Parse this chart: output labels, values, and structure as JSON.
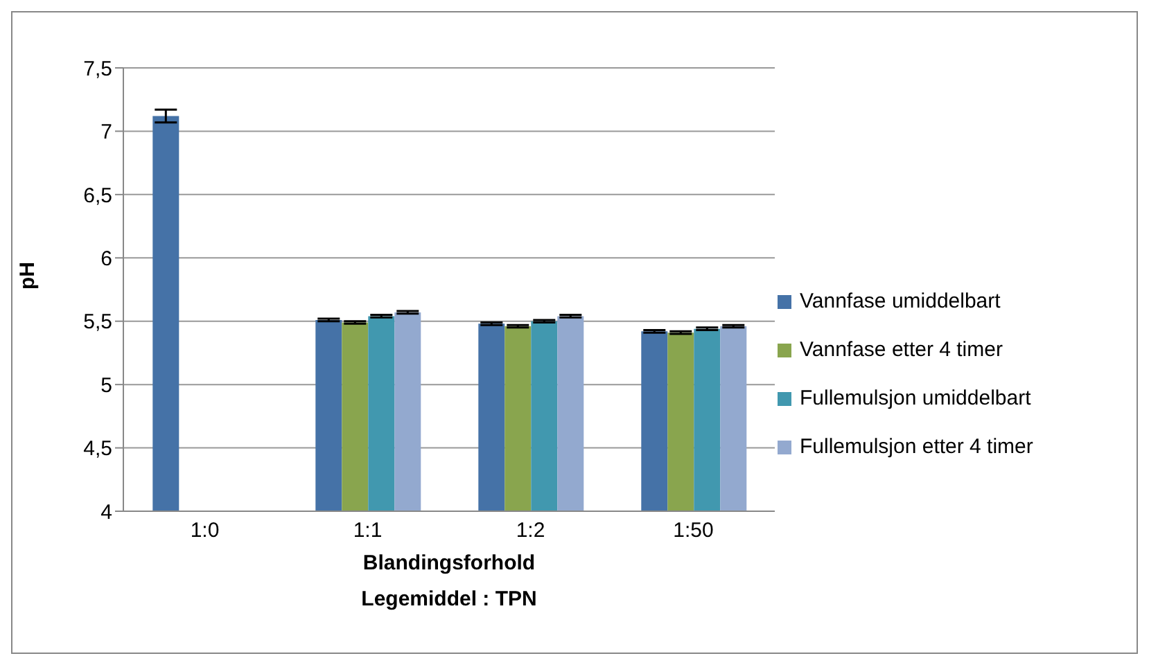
{
  "chart_data": {
    "type": "bar",
    "ylabel": "pH",
    "xlabel": "Blandingsforhold\nLegemiddel : TPN",
    "categories": [
      "1:0",
      "1:1",
      "1:2",
      "1:50"
    ],
    "series": [
      {
        "name": "Vannfase umiddelbart",
        "color": "#4572a7",
        "values": [
          7.12,
          5.51,
          5.48,
          5.42
        ],
        "errors": [
          0.05,
          0.01,
          0.01,
          0.01
        ]
      },
      {
        "name": "Vannfase etter 4 timer",
        "color": "#89a54e",
        "values": [
          null,
          5.49,
          5.46,
          5.41
        ],
        "errors": [
          null,
          0.01,
          0.01,
          0.01
        ]
      },
      {
        "name": "Fullemulsjon umiddelbart",
        "color": "#4198af",
        "values": [
          null,
          5.54,
          5.5,
          5.44
        ],
        "errors": [
          null,
          0.01,
          0.01,
          0.01
        ]
      },
      {
        "name": "Fullemulsjon etter 4 timer",
        "color": "#93a9cf",
        "values": [
          null,
          5.57,
          5.54,
          5.46
        ],
        "errors": [
          null,
          0.01,
          0.01,
          0.01
        ]
      }
    ],
    "ylim": [
      4,
      7.5
    ],
    "yticks": [
      {
        "value": 4,
        "label": "4"
      },
      {
        "value": 4.5,
        "label": "4,5"
      },
      {
        "value": 5,
        "label": "5"
      },
      {
        "value": 5.5,
        "label": "5,5"
      },
      {
        "value": 6,
        "label": "6"
      },
      {
        "value": 6.5,
        "label": "6,5"
      },
      {
        "value": 7,
        "label": "7"
      },
      {
        "value": 7.5,
        "label": "7,5"
      }
    ],
    "grid": "y",
    "legend": "right"
  }
}
